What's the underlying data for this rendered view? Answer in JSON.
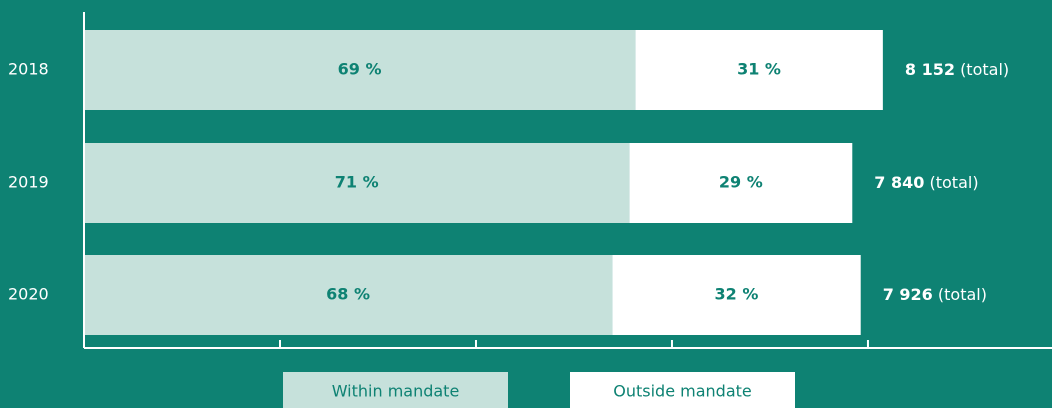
{
  "chart_data": {
    "type": "stacked-bar-horizontal",
    "categories": [
      "2018",
      "2019",
      "2020"
    ],
    "series": [
      {
        "name": "Within mandate",
        "color": "#c6e1db",
        "values": [
          5625,
          5566,
          5390
        ],
        "value_labels": [
          "69 %",
          "71 %",
          "68 %"
        ]
      },
      {
        "name": "Outside mandate",
        "color": "#ffffff",
        "values": [
          2527,
          2274,
          2536
        ],
        "value_labels": [
          "31 %",
          "29 %",
          "32 %"
        ]
      }
    ],
    "totals": [
      8152,
      7840,
      7926
    ],
    "total_labels": [
      "8 152",
      "7 840",
      "7 926"
    ],
    "total_suffix": "(total)",
    "xlim": [
      0,
      9878
    ],
    "xticks": [
      0,
      2000,
      4000,
      6000,
      8000
    ],
    "background": "#0e8273",
    "label_color": "#0e8273"
  }
}
